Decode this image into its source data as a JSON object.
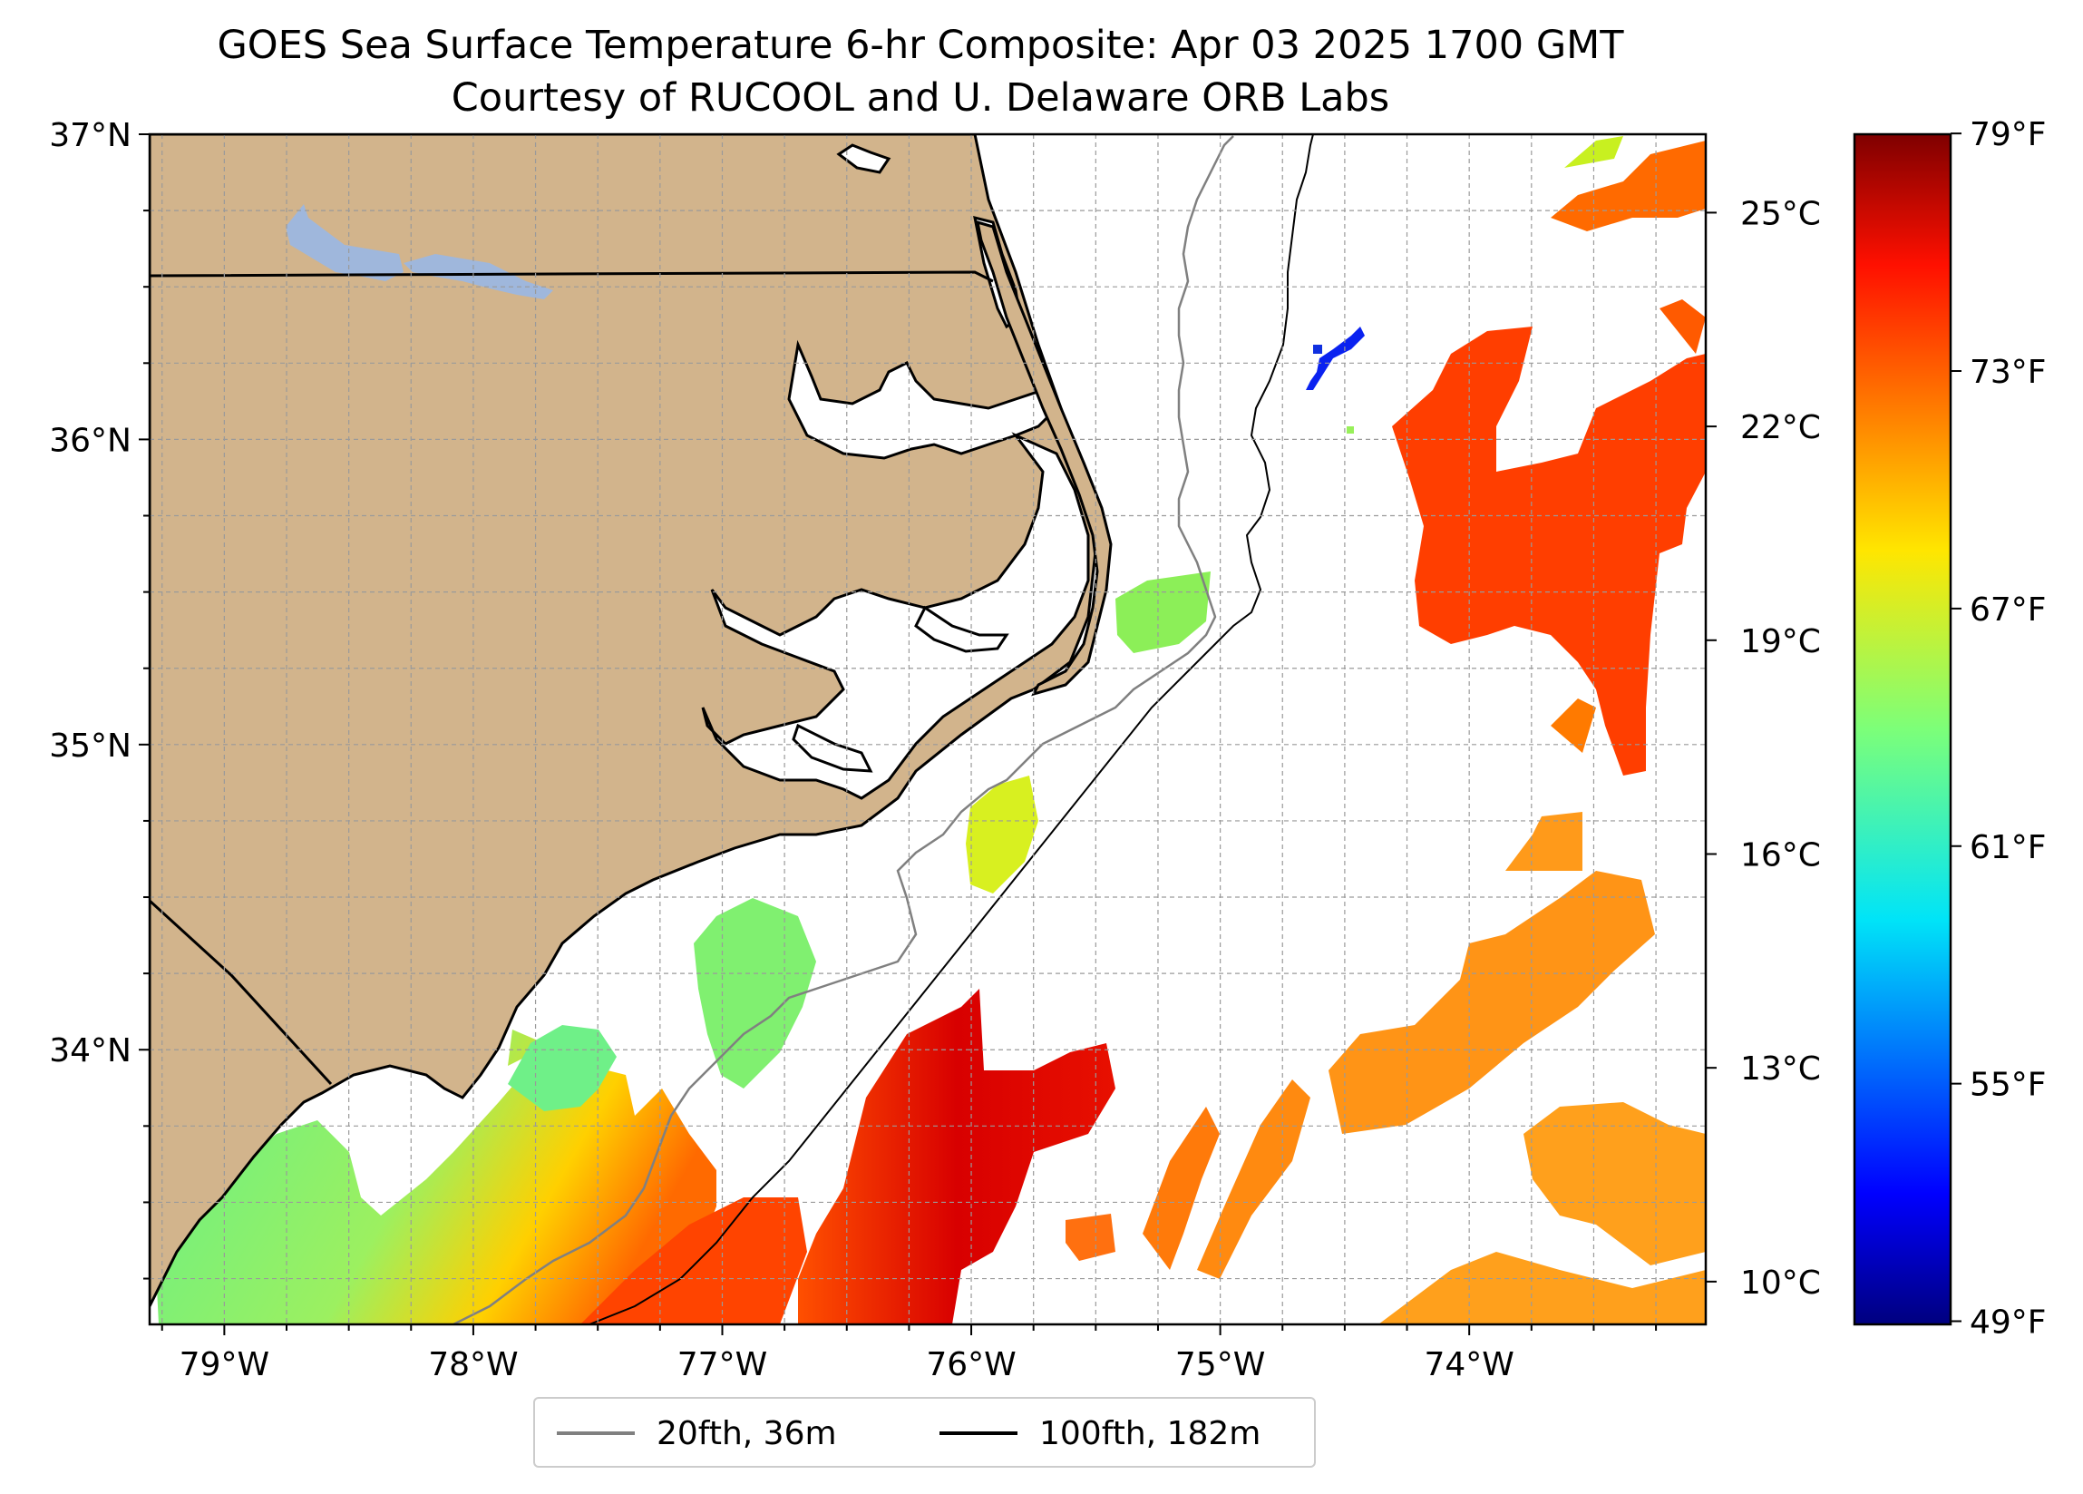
{
  "title": {
    "line1": "GOES Sea Surface Temperature 6-hr Composite: Apr 03 2025 1700 GMT",
    "line2": "Courtesy of RUCOOL and U. Delaware ORB Labs"
  },
  "map": {
    "lon_range": [
      -79.3,
      -73.05
    ],
    "lat_range": [
      33.1,
      37.0
    ],
    "x_tick_labels": [
      {
        "lon": -79,
        "label": "79°W"
      },
      {
        "lon": -78,
        "label": "78°W"
      },
      {
        "lon": -77,
        "label": "77°W"
      },
      {
        "lon": -76,
        "label": "76°W"
      },
      {
        "lon": -75,
        "label": "75°W"
      },
      {
        "lon": -74,
        "label": "74°W"
      }
    ],
    "y_tick_labels": [
      {
        "lat": 37,
        "label": "37°N"
      },
      {
        "lat": 36,
        "label": "36°N"
      },
      {
        "lat": 35,
        "label": "35°N"
      },
      {
        "lat": 34,
        "label": "34°N"
      }
    ],
    "grid": true,
    "land_color": "#d2b48c",
    "lake_color": "#9fb7dc",
    "ocean_color": "#ffffff"
  },
  "colorbar": {
    "colormap": "jet",
    "celsius_range": [
      9.4,
      26.1
    ],
    "celsius_ticks": [
      {
        "value": 25,
        "label": "25°C"
      },
      {
        "value": 22,
        "label": "22°C"
      },
      {
        "value": 19,
        "label": "19°C"
      },
      {
        "value": 16,
        "label": "16°C"
      },
      {
        "value": 13,
        "label": "13°C"
      },
      {
        "value": 10,
        "label": "10°C"
      }
    ],
    "fahrenheit_ticks": [
      {
        "value": 79,
        "label": "79°F"
      },
      {
        "value": 73,
        "label": "73°F"
      },
      {
        "value": 67,
        "label": "67°F"
      },
      {
        "value": 61,
        "label": "61°F"
      },
      {
        "value": 55,
        "label": "55°F"
      },
      {
        "value": 49,
        "label": "49°F"
      }
    ]
  },
  "legend": {
    "items": [
      {
        "label": "20fth, 36m",
        "color": "#808080"
      },
      {
        "label": "100fth, 182m",
        "color": "#000000"
      }
    ]
  }
}
